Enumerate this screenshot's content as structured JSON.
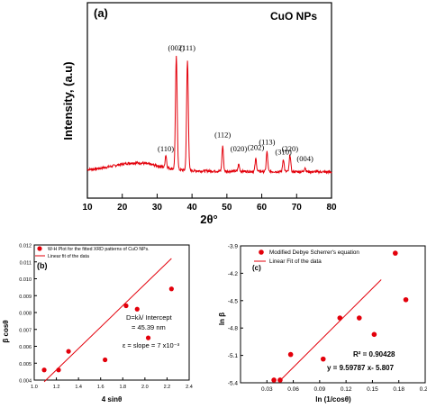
{
  "colors": {
    "data": "#e3000b",
    "axis": "#000000"
  },
  "chart_data": [
    {
      "id": "a",
      "type": "line",
      "panel_label": "(a)",
      "title": "CuO NPs",
      "xlabel": "2θ°",
      "ylabel": "Intensity, (a.u)",
      "xlim": [
        10,
        80
      ],
      "ylim": [
        0,
        1
      ],
      "xticks": [
        "10",
        "20",
        "30",
        "40",
        "50",
        "60",
        "70",
        "80"
      ],
      "yticks": [],
      "grid": false,
      "peaks": [
        {
          "label": "(110)",
          "x": 32.5,
          "height": 0.09,
          "label_at": 0.14
        },
        {
          "label": "(002)",
          "x": 35.5,
          "height": 0.8,
          "label_at": 0.86
        },
        {
          "label": "(111)",
          "x": 38.7,
          "height": 0.78,
          "label_at": 0.86
        },
        {
          "label": "(112)",
          "x": 48.8,
          "height": 0.18,
          "label_at": 0.24
        },
        {
          "label": "(020)",
          "x": 53.4,
          "height": 0.05,
          "label_at": 0.14
        },
        {
          "label": "(202)",
          "x": 58.3,
          "height": 0.09,
          "label_at": 0.15
        },
        {
          "label": "(113)",
          "x": 61.5,
          "height": 0.14,
          "label_at": 0.19
        },
        {
          "label": "(310)",
          "x": 66.2,
          "height": 0.09,
          "label_at": 0.12
        },
        {
          "label": "(220)",
          "x": 68.1,
          "height": 0.12,
          "label_at": 0.14
        },
        {
          "label": "(004)",
          "x": 72.4,
          "height": 0.03,
          "label_at": 0.07
        }
      ]
    },
    {
      "id": "b",
      "type": "scatter",
      "panel_label": "(b)",
      "xlabel": "4 sinθ",
      "ylabel": "β cosθ",
      "xlim": [
        1.0,
        2.4
      ],
      "ylim": [
        0.004,
        0.012
      ],
      "xticks": [
        "1.0",
        "1.2",
        "1.4",
        "1.6",
        "1.8",
        "2.0",
        "2.2",
        "2.4"
      ],
      "yticks": [
        "0.004",
        "0.005",
        "0.006",
        "0.007",
        "0.008",
        "0.009",
        "0.010",
        "0.011",
        "0.012"
      ],
      "grid": false,
      "legend": {
        "placement": "top-left",
        "entries": [
          "W-H Plot for the fitted XRD patterns of CuO NPs.",
          "Linear fit of the data"
        ]
      },
      "series": [
        {
          "name": "W-H Plot for the fitted XRD patterns of CuO NPs.",
          "x": [
            1.09,
            1.22,
            1.31,
            1.64,
            1.83,
            1.93,
            2.03,
            2.24
          ],
          "y": [
            0.0046,
            0.0046,
            0.0057,
            0.0052,
            0.0084,
            0.0082,
            0.0065,
            0.0094
          ]
        }
      ],
      "fit": {
        "name": "Linear fit of the data",
        "x": [
          1.09,
          2.24
        ],
        "y": [
          0.0039,
          0.0112
        ]
      },
      "annotations": [
        "D=kλ/ Intercept",
        "= 45.39 nm",
        "ε = slope = 7 x10⁻³"
      ]
    },
    {
      "id": "c",
      "type": "scatter",
      "panel_label": "(c)",
      "xlabel": "ln (1/cosθ)",
      "ylabel": "ln β",
      "xlim": [
        0.0,
        0.21
      ],
      "ylim": [
        -5.4,
        -3.9
      ],
      "xticks": [
        "0.03",
        "0.06",
        "0.09",
        "0.12",
        "0.15",
        "0.18",
        "0.21"
      ],
      "yticks": [
        "-3.9",
        "-4.2",
        "-4.5",
        "-4.8",
        "-5.1",
        "-5.4"
      ],
      "grid": false,
      "legend": {
        "placement": "top-left",
        "entries": [
          "Modified Debye Scherrer's equation",
          "Linear Fit of the data"
        ]
      },
      "series": [
        {
          "name": "Modified Debye Scherrer's equation",
          "x": [
            0.038,
            0.045,
            0.057,
            0.094,
            0.113,
            0.135,
            0.152,
            0.176,
            0.188
          ],
          "y": [
            -5.37,
            -5.37,
            -5.09,
            -5.14,
            -4.69,
            -4.69,
            -4.87,
            -3.98,
            -4.49
          ]
        }
      ],
      "fit": {
        "name": "Linear Fit of the data",
        "x": [
          0.045,
          0.16
        ],
        "y": [
          -5.375,
          -4.27
        ]
      },
      "annotations": [
        "R² = 0.90428",
        "y = 9.59787 x- 5.807"
      ]
    }
  ]
}
